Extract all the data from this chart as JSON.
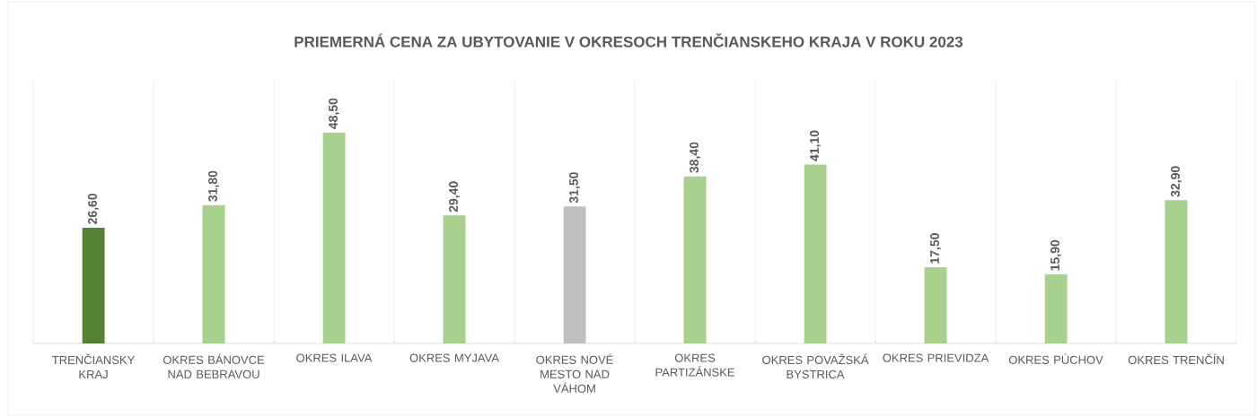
{
  "chart_data": {
    "type": "bar",
    "title": "PRIEMERNÁ CENA ZA UBYTOVANIE V OKRESOCH TRENČIANSKEHO KRAJA V ROKU 2023",
    "categories": [
      "TRENČIANSKY KRAJ",
      "OKRES BÁNOVCE NAD BEBRAVOU",
      "OKRES ILAVA",
      "OKRES MYJAVA",
      "OKRES NOVÉ MESTO NAD VÁHOM",
      "OKRES PARTIZÁNSKE",
      "OKRES POVAŽSKÁ BYSTRICA",
      "OKRES PRIEVIDZA",
      "OKRES PÚCHOV",
      "OKRES TRENČÍN"
    ],
    "values": [
      26.6,
      31.8,
      48.5,
      29.4,
      31.5,
      38.4,
      41.1,
      17.5,
      15.9,
      32.9
    ],
    "value_labels": [
      "26,60",
      "31,80",
      "48,50",
      "29,40",
      "31,50",
      "38,40",
      "41,10",
      "17,50",
      "15,90",
      "32,90"
    ],
    "colors": [
      "#548235",
      "#a9d18e",
      "#a9d18e",
      "#a9d18e",
      "#bfbfbf",
      "#a9d18e",
      "#a9d18e",
      "#a9d18e",
      "#a9d18e",
      "#a9d18e"
    ],
    "grid": "x"
  }
}
